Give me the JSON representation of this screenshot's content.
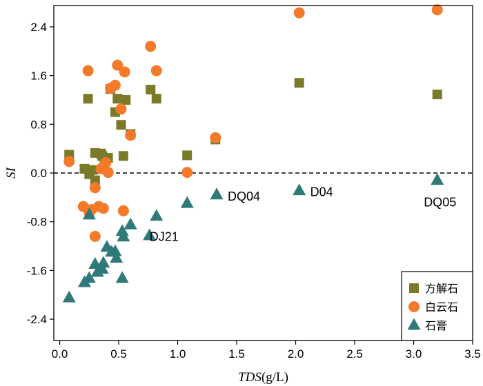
{
  "chart_data": {
    "type": "scatter",
    "title": "",
    "xlabel_italic": "TDS",
    "xlabel_unit": "(g/L)",
    "ylabel": "SI",
    "xlim": [
      -0.05,
      3.5
    ],
    "ylim": [
      -2.75,
      2.75
    ],
    "xticks": [
      "0.0",
      "0.5",
      "1.0",
      "1.5",
      "2.0",
      "2.5",
      "3.0",
      "3.5"
    ],
    "xtick_values": [
      0,
      0.5,
      1.0,
      1.5,
      2.0,
      2.5,
      3.0,
      3.5
    ],
    "yticks": [
      "-2.4",
      "-1.6",
      "-0.8",
      "0.0",
      "0.8",
      "1.6",
      "2.4"
    ],
    "ytick_values": [
      -2.4,
      -1.6,
      -0.8,
      0.0,
      0.8,
      1.6,
      2.4
    ],
    "reference_line": {
      "y": 0.0,
      "style": "dashed"
    },
    "legend_position": "bottom-right",
    "series": [
      {
        "name": "方解石",
        "marker": "square",
        "color": "#7a7a2a",
        "points": [
          [
            0.08,
            0.3
          ],
          [
            0.21,
            0.07
          ],
          [
            0.24,
            1.22
          ],
          [
            0.25,
            -0.02
          ],
          [
            0.28,
            0.05
          ],
          [
            0.3,
            0.33
          ],
          [
            0.3,
            -0.12
          ],
          [
            0.35,
            0.32
          ],
          [
            0.36,
            0.28
          ],
          [
            0.38,
            0.22
          ],
          [
            0.41,
            0.25
          ],
          [
            0.43,
            1.38
          ],
          [
            0.47,
            1.0
          ],
          [
            0.49,
            1.22
          ],
          [
            0.52,
            0.79
          ],
          [
            0.54,
            0.28
          ],
          [
            0.56,
            1.2
          ],
          [
            0.6,
            0.64
          ],
          [
            0.77,
            1.37
          ],
          [
            0.82,
            1.22
          ],
          [
            1.08,
            0.29
          ],
          [
            1.32,
            0.55
          ],
          [
            2.03,
            1.48
          ],
          [
            3.2,
            1.29
          ]
        ]
      },
      {
        "name": "白云石",
        "marker": "circle",
        "color": "#f47a2a",
        "points": [
          [
            0.08,
            0.19
          ],
          [
            0.2,
            -0.55
          ],
          [
            0.24,
            1.68
          ],
          [
            0.25,
            -0.65
          ],
          [
            0.27,
            -0.6
          ],
          [
            0.3,
            -0.24
          ],
          [
            0.3,
            -1.04
          ],
          [
            0.33,
            -0.55
          ],
          [
            0.35,
            0.07
          ],
          [
            0.37,
            -0.58
          ],
          [
            0.39,
            0.17
          ],
          [
            0.41,
            0.01
          ],
          [
            0.43,
            1.39
          ],
          [
            0.47,
            1.44
          ],
          [
            0.49,
            1.77
          ],
          [
            0.52,
            1.05
          ],
          [
            0.54,
            -0.62
          ],
          [
            0.55,
            1.66
          ],
          [
            0.6,
            0.62
          ],
          [
            0.77,
            2.08
          ],
          [
            0.82,
            1.68
          ],
          [
            1.08,
            0.01
          ],
          [
            1.32,
            0.58
          ],
          [
            2.03,
            2.63
          ],
          [
            3.2,
            2.68
          ]
        ]
      },
      {
        "name": "石膏",
        "marker": "triangle",
        "color": "#2f7a78",
        "points": [
          [
            0.08,
            -2.05
          ],
          [
            0.21,
            -1.8
          ],
          [
            0.25,
            -1.73
          ],
          [
            0.25,
            -0.69
          ],
          [
            0.3,
            -1.5
          ],
          [
            0.32,
            -1.63
          ],
          [
            0.36,
            -1.58
          ],
          [
            0.37,
            -1.48
          ],
          [
            0.4,
            -1.22
          ],
          [
            0.44,
            -1.3
          ],
          [
            0.47,
            -1.29
          ],
          [
            0.48,
            -1.4
          ],
          [
            0.53,
            -0.96
          ],
          [
            0.53,
            -1.73
          ],
          [
            0.54,
            -1.05
          ],
          [
            0.6,
            -0.85
          ],
          [
            0.76,
            -1.03
          ],
          [
            0.82,
            -0.71
          ],
          [
            1.08,
            -0.5
          ],
          [
            1.33,
            -0.36
          ],
          [
            2.03,
            -0.29
          ],
          [
            3.2,
            -0.12
          ]
        ]
      }
    ],
    "annotations": [
      {
        "text": "DJ21",
        "x": 0.82,
        "y": -0.71
      },
      {
        "text": "DQ04",
        "x": 1.33,
        "y": -0.36
      },
      {
        "text": "D04",
        "x": 2.03,
        "y": -0.29
      },
      {
        "text": "DQ05",
        "x": 3.2,
        "y": -0.12
      }
    ]
  }
}
